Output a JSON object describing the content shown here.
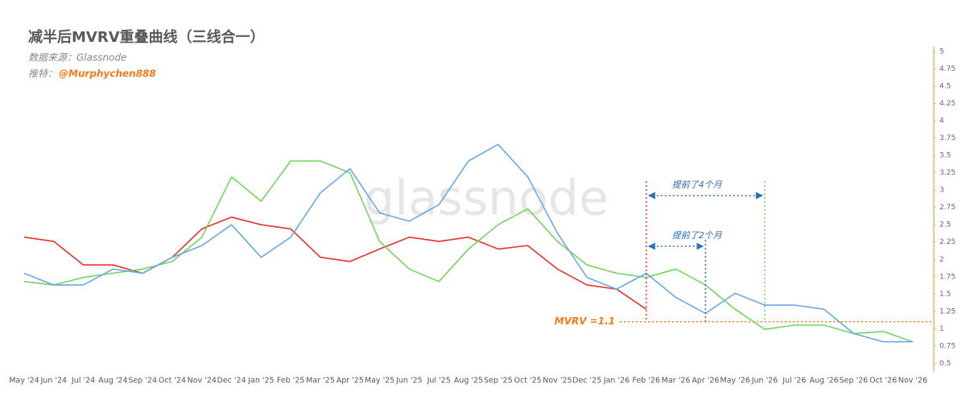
{
  "chart_data": {
    "type": "line",
    "title": "减半后MVRV重叠曲线（三线合一）",
    "subtitle": "数据来源：Glassnode",
    "twitter_label": "推特：",
    "twitter": "@Murphychen888",
    "watermark": "glassnode",
    "categories": [
      "May '24",
      "Jun '24",
      "Jul '24",
      "Aug '24",
      "Sep '24",
      "Oct '24",
      "Nov '24",
      "Dec '24",
      "Jan '25",
      "Feb '25",
      "Mar '25",
      "Apr '25",
      "May '25",
      "Jun '25",
      "Jul '25",
      "Aug '25",
      "Sep '25",
      "Oct '25",
      "Nov '25",
      "Dec '25",
      "Jan '26",
      "Feb '26",
      "Mar '26",
      "Apr '26",
      "May '26",
      "Jun '26",
      "Jul '26",
      "Aug '26",
      "Sep '26",
      "Oct '26",
      "Nov '26"
    ],
    "series": [
      {
        "color": "#e8322a",
        "values": [
          2.32,
          2.26,
          1.92,
          1.92,
          1.8,
          2.03,
          2.44,
          2.61,
          2.5,
          2.44,
          2.03,
          1.97,
          2.15,
          2.32,
          2.26,
          2.32,
          2.15,
          2.2,
          1.86,
          1.63,
          1.57,
          1.28,
          null,
          null,
          null,
          null,
          null,
          null,
          null,
          null,
          null
        ]
      },
      {
        "color": "#74d461",
        "values": [
          1.68,
          1.63,
          1.74,
          1.8,
          1.86,
          1.97,
          2.32,
          3.19,
          2.84,
          3.42,
          3.42,
          3.25,
          2.26,
          1.86,
          1.68,
          2.15,
          2.5,
          2.73,
          2.26,
          1.92,
          1.8,
          1.74,
          1.86,
          1.63,
          1.28,
          0.99,
          1.05,
          1.05,
          0.93,
          0.96,
          0.81
        ]
      },
      {
        "color": "#6aa9e4",
        "values": [
          1.8,
          1.63,
          1.63,
          1.86,
          1.8,
          2.03,
          2.2,
          2.5,
          2.03,
          2.32,
          2.96,
          3.31,
          2.67,
          2.55,
          2.79,
          3.42,
          3.66,
          3.19,
          2.38,
          1.74,
          1.57,
          1.8,
          1.45,
          1.22,
          1.51,
          1.34,
          1.34,
          1.28,
          0.93,
          0.81,
          0.81
        ]
      }
    ],
    "ylim": [
      0.4,
      5.07
    ],
    "yticks": [
      0.5,
      0.75,
      1,
      1.25,
      1.5,
      1.75,
      2,
      2.25,
      2.5,
      2.75,
      3,
      3.25,
      3.5,
      3.75,
      4,
      4.25,
      4.5,
      4.75,
      5
    ],
    "reference_line": {
      "value": 1.1,
      "label": "MVRV =1.1",
      "color": "#f07d1a"
    },
    "vlines": [
      {
        "category": "Feb '26",
        "color": "#e8322a"
      },
      {
        "category": "Apr '26",
        "color": "#2f6fb5"
      },
      {
        "category": "Jun '26",
        "color": "#74d461"
      }
    ],
    "annotations": [
      {
        "text": "提前了4个月",
        "from": "Feb '26",
        "to": "Jun '26"
      },
      {
        "text": "提前了2个月",
        "from": "Feb '26",
        "to": "Apr '26"
      }
    ]
  }
}
